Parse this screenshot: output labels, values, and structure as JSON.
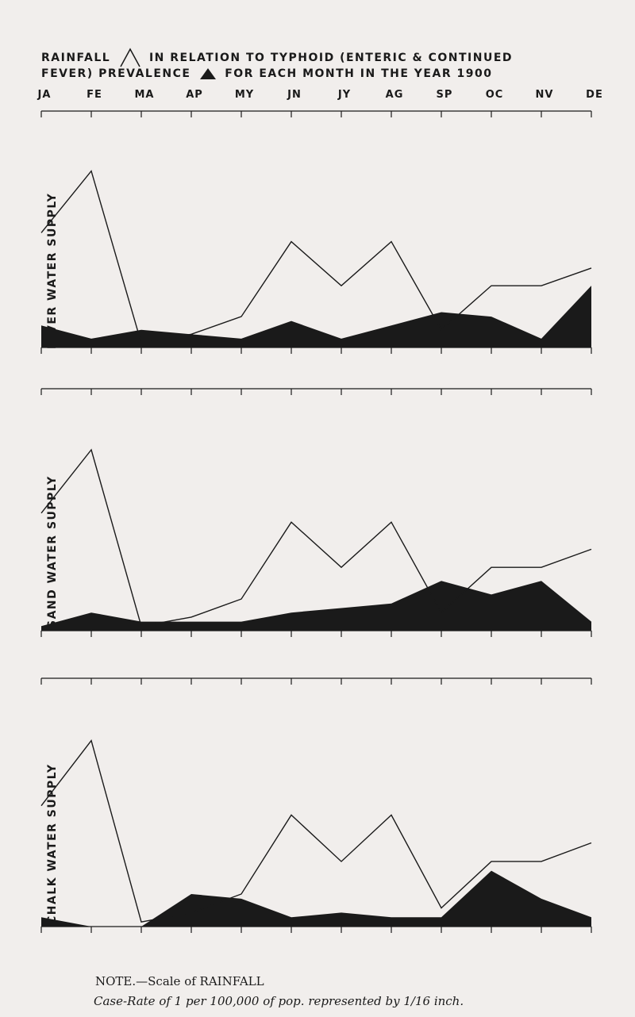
{
  "header": {
    "title_part1": "RAINFALL",
    "title_part2": "IN RELATION TO TYPHOID (ENTERIC & CONTINUED",
    "title_line2a": "FEVER) PREVALENCE",
    "title_line2b": "FOR EACH MONTH IN THE YEAR 1900",
    "months": [
      "JA",
      "FE",
      "MA",
      "AP",
      "MY",
      "JN",
      "JY",
      "AG",
      "SP",
      "OC",
      "NV",
      "DE"
    ]
  },
  "footer": {
    "note": "NOTE.—Scale of RAINFALL",
    "note2": "Case-Rate of 1 per 100,000 of pop. represented by 1/16 inch."
  },
  "colors": {
    "ink": "#1a1a1a",
    "paper": "#f1eeec"
  },
  "chart_data": [
    {
      "type": "line",
      "title": "RIVER WATER SUPPLY",
      "categories": [
        "JA",
        "FE",
        "MA",
        "AP",
        "MY",
        "JN",
        "JY",
        "AG",
        "SP",
        "OC",
        "NV",
        "DE"
      ],
      "series": [
        {
          "name": "RAINFALL",
          "kind": "line",
          "values": [
            1.3,
            2.0,
            0.05,
            0.15,
            0.35,
            1.2,
            0.7,
            1.2,
            0.2,
            0.7,
            0.7,
            0.9
          ]
        },
        {
          "name": "TYPHOID",
          "kind": "area",
          "values": [
            0.25,
            0.1,
            0.2,
            0.15,
            0.1,
            0.3,
            0.1,
            0.25,
            0.4,
            0.35,
            0.1,
            0.7
          ]
        }
      ],
      "ylim": [
        0,
        2.5
      ]
    },
    {
      "type": "line",
      "title": "SAND WATER SUPPLY",
      "categories": [
        "JA",
        "FE",
        "MA",
        "AP",
        "MY",
        "JN",
        "JY",
        "AG",
        "SP",
        "OC",
        "NV",
        "DE"
      ],
      "series": [
        {
          "name": "RAINFALL",
          "kind": "line",
          "values": [
            1.3,
            2.0,
            0.05,
            0.15,
            0.35,
            1.2,
            0.7,
            1.2,
            0.2,
            0.7,
            0.7,
            0.9
          ]
        },
        {
          "name": "TYPHOID",
          "kind": "area",
          "values": [
            0.05,
            0.2,
            0.1,
            0.1,
            0.1,
            0.2,
            0.25,
            0.3,
            0.55,
            0.4,
            0.55,
            0.1
          ]
        }
      ],
      "ylim": [
        0,
        2.5
      ]
    },
    {
      "type": "line",
      "title": "CHALK WATER SUPPLY",
      "categories": [
        "JA",
        "FE",
        "MA",
        "AP",
        "MY",
        "JN",
        "JY",
        "AG",
        "SP",
        "OC",
        "NV",
        "DE"
      ],
      "series": [
        {
          "name": "RAINFALL",
          "kind": "line",
          "values": [
            1.3,
            2.0,
            0.05,
            0.15,
            0.35,
            1.2,
            0.7,
            1.2,
            0.2,
            0.7,
            0.7,
            0.9
          ]
        },
        {
          "name": "TYPHOID",
          "kind": "area",
          "values": [
            0.1,
            0.0,
            0.0,
            0.35,
            0.3,
            0.1,
            0.15,
            0.1,
            0.1,
            0.6,
            0.3,
            0.1
          ]
        }
      ],
      "ylim": [
        0,
        2.5
      ]
    }
  ]
}
